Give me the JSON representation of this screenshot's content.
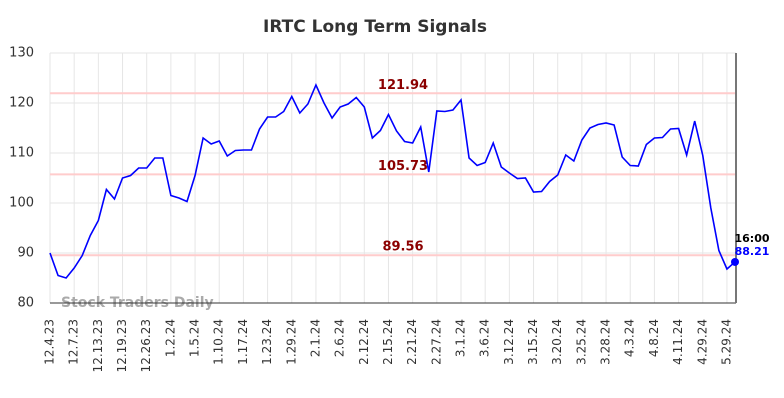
{
  "chart_data": {
    "type": "line",
    "title": "IRTC Long Term Signals",
    "watermark": "Stock Traders Daily",
    "categories": [
      "12.4.23",
      null,
      null,
      "12.7.23",
      null,
      null,
      "12.13.23",
      null,
      null,
      "12.19.23",
      null,
      null,
      "12.26.23",
      null,
      null,
      "1.2.24",
      null,
      null,
      "1.5.24",
      null,
      null,
      "1.10.24",
      null,
      null,
      "1.17.24",
      null,
      null,
      "1.23.24",
      null,
      null,
      "1.29.24",
      null,
      null,
      "2.1.24",
      null,
      null,
      "2.6.24",
      null,
      null,
      "2.12.24",
      null,
      null,
      "2.15.24",
      null,
      null,
      "2.21.24",
      null,
      null,
      "2.27.24",
      null,
      null,
      "3.1.24",
      null,
      null,
      "3.6.24",
      null,
      null,
      "3.12.24",
      null,
      null,
      "3.15.24",
      null,
      null,
      "3.20.24",
      null,
      null,
      "3.25.24",
      null,
      null,
      "3.28.24",
      null,
      null,
      "4.3.24",
      null,
      null,
      "4.8.24",
      null,
      null,
      "4.11.24",
      null,
      null,
      "4.29.24",
      null,
      null,
      "5.29.24",
      null
    ],
    "series": [
      {
        "name": "IRTC",
        "color": "#0000ff",
        "values": [
          90,
          85.5,
          85,
          87,
          89.5,
          93.5,
          96.5,
          102.7,
          100.8,
          105,
          105.5,
          107,
          107,
          109,
          109,
          101.5,
          101,
          100.3,
          105.5,
          113,
          111.8,
          112.4,
          109.4,
          110.5,
          110.6,
          110.6,
          114.8,
          117.2,
          117.2,
          118.3,
          121.3,
          118,
          119.8,
          123.6,
          120,
          117,
          119.2,
          119.8,
          121.1,
          119.2,
          113,
          114.5,
          117.7,
          114.4,
          112.3,
          112,
          115.2,
          106.2,
          118.4,
          118.3,
          118.6,
          120.6,
          109,
          107.5,
          108.1,
          112,
          107.2,
          106,
          104.9,
          105,
          102.2,
          102.3,
          104.3,
          105.6,
          109.6,
          108.4,
          112.6,
          115,
          115.7,
          116,
          115.6,
          109.2,
          107.5,
          107.4,
          111.7,
          113,
          113.1,
          114.8,
          114.9,
          109.6,
          116.4,
          109.5,
          99,
          90.5,
          86.8,
          88.21
        ]
      }
    ],
    "last_time": "16:00",
    "hlines": [
      121.94,
      105.73,
      89.56
    ],
    "hline_color": "#ffcccc",
    "hline_label_color": "#8b0000",
    "ylim": [
      80,
      130
    ],
    "yticks": [
      80,
      90,
      100,
      110,
      120,
      130
    ],
    "grid": true
  }
}
